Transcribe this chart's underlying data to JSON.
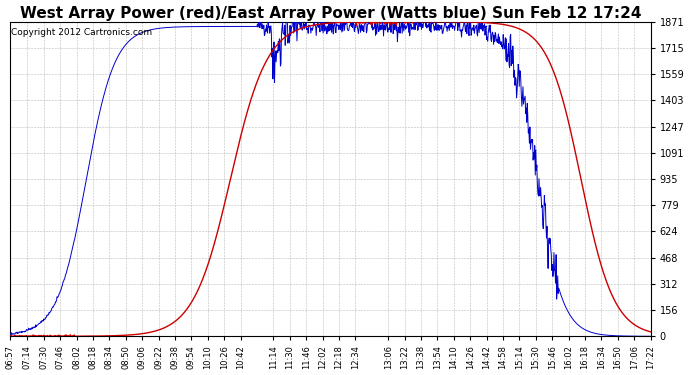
{
  "title": "West Array Power (red)/East Array Power (Watts blue) Sun Feb 12 17:24",
  "copyright": "Copyright 2012 Cartronics.com",
  "y_ticks": [
    0.0,
    155.9,
    311.8,
    467.7,
    623.5,
    779.4,
    935.3,
    1091.2,
    1247.1,
    1403.0,
    1558.9,
    1714.8,
    1870.6
  ],
  "y_max": 1870.6,
  "y_min": 0.0,
  "x_labels": [
    "06:57",
    "07:14",
    "07:30",
    "07:46",
    "08:02",
    "08:18",
    "08:34",
    "08:50",
    "09:06",
    "09:22",
    "09:38",
    "09:54",
    "10:10",
    "10:26",
    "10:42",
    "11:14",
    "11:30",
    "11:46",
    "12:02",
    "12:18",
    "12:34",
    "13:06",
    "13:22",
    "13:38",
    "13:54",
    "14:10",
    "14:26",
    "14:42",
    "14:58",
    "15:14",
    "15:30",
    "15:46",
    "16:02",
    "16:18",
    "16:34",
    "16:50",
    "17:06",
    "17:22"
  ],
  "bg_color": "#ffffff",
  "grid_color": "#aaaaaa",
  "line_red_color": "#cc0000",
  "line_blue_color": "#0000cc",
  "title_fontsize": 11,
  "copyright_fontsize": 6.5,
  "fig_width": 6.9,
  "fig_height": 3.75,
  "dpi": 100
}
